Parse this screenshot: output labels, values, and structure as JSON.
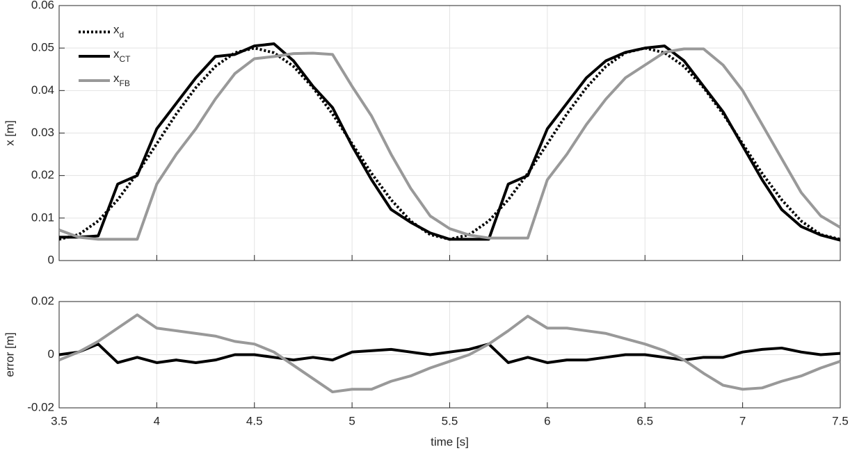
{
  "chart_data": [
    {
      "type": "line",
      "ylabel": "x [m]",
      "grid": true,
      "legend": "upper-left",
      "xtick_labels": false,
      "xlim": [
        3.5,
        7.5
      ],
      "xticks": [
        3.5,
        4,
        4.5,
        5,
        5.5,
        6,
        6.5,
        7,
        7.5
      ],
      "ylim": [
        0,
        0.06
      ],
      "yticks": [
        0,
        0.01,
        0.02,
        0.03,
        0.04,
        0.05,
        0.06
      ],
      "x": [
        3.5,
        3.6,
        3.7,
        3.8,
        3.9,
        4.0,
        4.1,
        4.2,
        4.3,
        4.4,
        4.5,
        4.6,
        4.7,
        4.8,
        4.9,
        5.0,
        5.1,
        5.2,
        5.3,
        5.4,
        5.5,
        5.6,
        5.7,
        5.8,
        5.9,
        6.0,
        6.1,
        6.2,
        6.3,
        6.4,
        6.5,
        6.6,
        6.7,
        6.8,
        6.9,
        7.0,
        7.1,
        7.2,
        7.3,
        7.4,
        7.5
      ],
      "series": [
        {
          "name": "x",
          "name_sub": "d",
          "color": "#000000",
          "dash": "dotted",
          "values": [
            0.005,
            0.0061,
            0.0093,
            0.0143,
            0.0205,
            0.0275,
            0.0345,
            0.0407,
            0.0457,
            0.0489,
            0.05,
            0.0489,
            0.0457,
            0.0407,
            0.0345,
            0.0275,
            0.0205,
            0.0143,
            0.0093,
            0.0061,
            0.005,
            0.0061,
            0.0093,
            0.0143,
            0.0205,
            0.0275,
            0.0345,
            0.0407,
            0.0457,
            0.0489,
            0.05,
            0.0489,
            0.0457,
            0.0407,
            0.0345,
            0.0275,
            0.0205,
            0.0143,
            0.0093,
            0.0061,
            0.005
          ]
        },
        {
          "name": "x",
          "name_sub": "CT",
          "color": "#000000",
          "dash": "solid",
          "values": [
            0.0055,
            0.0055,
            0.0058,
            0.018,
            0.02,
            0.031,
            0.037,
            0.043,
            0.048,
            0.0485,
            0.0505,
            0.051,
            0.047,
            0.041,
            0.036,
            0.027,
            0.019,
            0.012,
            0.009,
            0.0065,
            0.005,
            0.005,
            0.005,
            0.018,
            0.02,
            0.031,
            0.037,
            0.043,
            0.047,
            0.049,
            0.05,
            0.0505,
            0.047,
            0.041,
            0.035,
            0.027,
            0.019,
            0.012,
            0.008,
            0.006,
            0.0048
          ]
        },
        {
          "name": "x",
          "name_sub": "FB",
          "color": "#999999",
          "dash": "solid",
          "values": [
            0.0072,
            0.0055,
            0.005,
            0.005,
            0.005,
            0.018,
            0.025,
            0.031,
            0.038,
            0.044,
            0.0475,
            0.048,
            0.0487,
            0.0488,
            0.0485,
            0.041,
            0.034,
            0.025,
            0.017,
            0.0105,
            0.0075,
            0.006,
            0.0053,
            0.0053,
            0.0053,
            0.019,
            0.025,
            0.032,
            0.038,
            0.043,
            0.046,
            0.049,
            0.0498,
            0.0498,
            0.046,
            0.04,
            0.032,
            0.024,
            0.016,
            0.0105,
            0.0078
          ]
        }
      ]
    },
    {
      "type": "line",
      "ylabel": "error [m]",
      "xlabel": "time [s]",
      "grid": true,
      "xtick_labels": true,
      "xlim": [
        3.5,
        7.5
      ],
      "xticks": [
        3.5,
        4,
        4.5,
        5,
        5.5,
        6,
        6.5,
        7,
        7.5
      ],
      "ylim": [
        -0.02,
        0.02
      ],
      "yticks": [
        -0.02,
        0,
        0.02
      ],
      "x": [
        3.5,
        3.6,
        3.7,
        3.8,
        3.9,
        4.0,
        4.1,
        4.2,
        4.3,
        4.4,
        4.5,
        4.6,
        4.7,
        4.8,
        4.9,
        5.0,
        5.1,
        5.2,
        5.3,
        5.4,
        5.5,
        5.6,
        5.7,
        5.8,
        5.9,
        6.0,
        6.1,
        6.2,
        6.3,
        6.4,
        6.5,
        6.6,
        6.7,
        6.8,
        6.9,
        7.0,
        7.1,
        7.2,
        7.3,
        7.4,
        7.5
      ],
      "series": [
        {
          "color": "#000000",
          "dash": "solid",
          "values": [
            0,
            0.001,
            0.004,
            -0.003,
            -0.001,
            -0.003,
            -0.002,
            -0.003,
            -0.002,
            0,
            0,
            -0.001,
            -0.002,
            -0.001,
            -0.002,
            0.001,
            0.0015,
            0.002,
            0.001,
            0,
            0.001,
            0.002,
            0.004,
            -0.003,
            -0.001,
            -0.003,
            -0.002,
            -0.002,
            -0.001,
            0,
            0,
            -0.001,
            -0.002,
            -0.001,
            -0.001,
            0.001,
            0.002,
            0.0025,
            0.001,
            0,
            0.0005
          ]
        },
        {
          "color": "#999999",
          "dash": "solid",
          "values": [
            -0.002,
            0.001,
            0.005,
            0.01,
            0.015,
            0.01,
            0.009,
            0.008,
            0.007,
            0.005,
            0.004,
            0.001,
            -0.004,
            -0.009,
            -0.014,
            -0.013,
            -0.013,
            -0.01,
            -0.008,
            -0.005,
            -0.0025,
            0,
            0.004,
            0.009,
            0.0145,
            0.01,
            0.01,
            0.009,
            0.008,
            0.006,
            0.004,
            0.0015,
            -0.002,
            -0.007,
            -0.0115,
            -0.013,
            -0.0125,
            -0.01,
            -0.008,
            -0.005,
            -0.0025
          ]
        }
      ]
    }
  ]
}
